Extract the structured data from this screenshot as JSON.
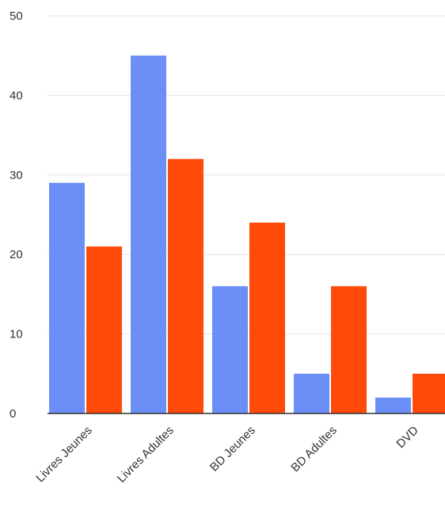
{
  "chart_data": {
    "type": "bar",
    "categories": [
      "Livres Jeunes",
      "Livres Adultes",
      "BD Jeunes",
      "BD Adultes",
      "DVD"
    ],
    "series": [
      {
        "values": [
          29,
          45,
          16,
          5,
          2
        ],
        "color": "#6b8ef7"
      },
      {
        "values": [
          21,
          32,
          24,
          16,
          5
        ],
        "color": "#ff4a0a"
      }
    ],
    "ylim": [
      0,
      50
    ],
    "yticks": [
      "0",
      "10",
      "20",
      "30",
      "40",
      "50"
    ],
    "grid": true,
    "legend": "none"
  }
}
